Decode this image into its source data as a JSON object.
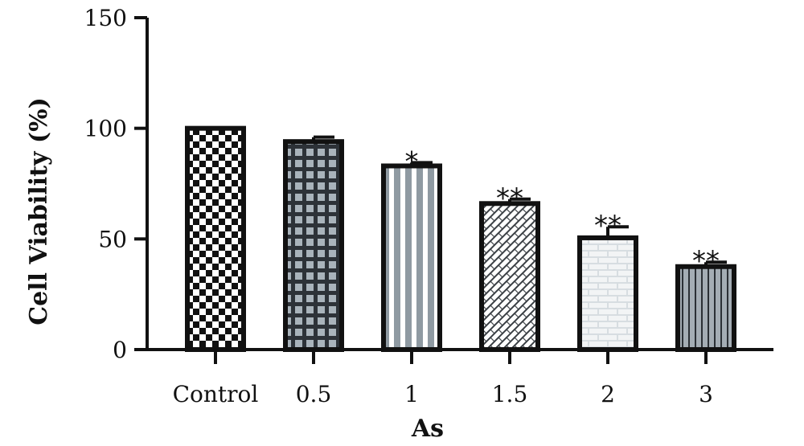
{
  "chart_data": {
    "type": "bar",
    "title": "",
    "xlabel": "As",
    "ylabel": "Cell Viability (%)",
    "ylim": [
      0,
      150
    ],
    "yticks": [
      0,
      50,
      100,
      150
    ],
    "grid": false,
    "categories": [
      "Control",
      "0.5",
      "1",
      "1.5",
      "2",
      "3"
    ],
    "values": [
      100,
      94,
      83,
      66,
      50.5,
      37.5
    ],
    "errors": [
      0,
      2,
      1.5,
      2,
      5,
      2
    ],
    "significance": [
      "",
      "",
      "*",
      "**",
      "**",
      "**"
    ],
    "patterns": [
      "checkerboard",
      "grid",
      "vertical-stripes",
      "crosshatch",
      "brick",
      "thin-vertical-stripes"
    ]
  }
}
